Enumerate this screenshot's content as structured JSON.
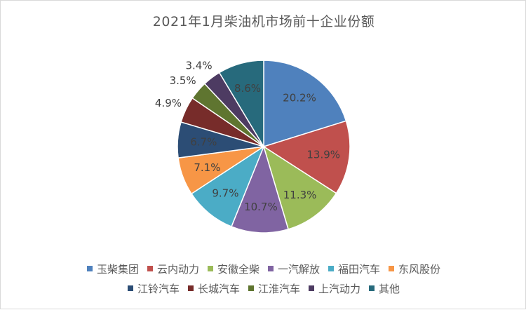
{
  "chart_data": {
    "type": "pie",
    "title": "2021年1月柴油机市场前十企业份额",
    "slices": [
      {
        "name": "玉柴集团",
        "value": 20.2,
        "label": "20.2%",
        "color": "#4f81bd"
      },
      {
        "name": "云内动力",
        "value": 13.9,
        "label": "13.9%",
        "color": "#c0504d"
      },
      {
        "name": "安徽全柴",
        "value": 11.3,
        "label": "11.3%",
        "color": "#9bbb59"
      },
      {
        "name": "一汽解放",
        "value": 10.7,
        "label": "10.7%",
        "color": "#8064a2"
      },
      {
        "name": "福田汽车",
        "value": 9.7,
        "label": "9.7%",
        "color": "#4bacc6"
      },
      {
        "name": "东风股份",
        "value": 7.1,
        "label": "7.1%",
        "color": "#f79646"
      },
      {
        "name": "江铃汽车",
        "value": 6.7,
        "label": "6.7%",
        "color": "#2c4d75"
      },
      {
        "name": "长城汽车",
        "value": 4.9,
        "label": "4.9%",
        "color": "#772c2a"
      },
      {
        "name": "江淮汽车",
        "value": 3.5,
        "label": "3.5%",
        "color": "#5f7530"
      },
      {
        "name": "上汽动力",
        "value": 3.4,
        "label": "3.4%",
        "color": "#4d3b62"
      },
      {
        "name": "其他",
        "value": 8.6,
        "label": "8.6%",
        "color": "#276a7c"
      }
    ],
    "legend_position": "bottom"
  }
}
